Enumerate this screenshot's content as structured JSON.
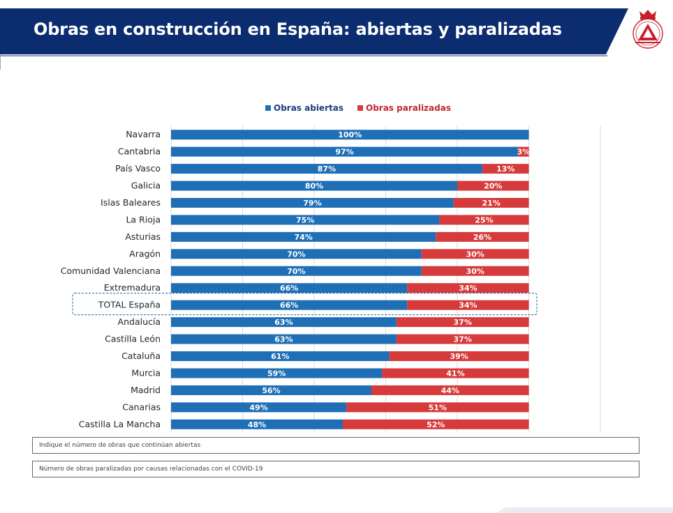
{
  "header": {
    "title": "Obras en construcción en España: abiertas y paralizadas"
  },
  "colors": {
    "banner": "#0b2c6e",
    "abiertas": "#1f6fb6",
    "paralizadas": "#d63a3a",
    "logo": "#c8202a"
  },
  "icons": {
    "logo": "crowned-triangle-emblem-icon"
  },
  "chart_data": {
    "type": "bar",
    "orientation": "horizontal",
    "stacked": true,
    "categories": [
      "Navarra",
      "Cantabria",
      "País Vasco",
      "Galicia",
      "Islas Baleares",
      "La Rioja",
      "Asturias",
      "Aragón",
      "Comunidad Valenciana",
      "Extremadura",
      "TOTAL España",
      "Andalucía",
      "Castilla León",
      "Cataluña",
      "Murcia",
      "Madrid",
      "Canarias",
      "Castilla La Mancha"
    ],
    "series": [
      {
        "name": "Obras abiertas",
        "values": [
          100,
          97,
          87,
          80,
          79,
          75,
          74,
          70,
          70,
          66,
          66,
          63,
          63,
          61,
          59,
          56,
          49,
          48
        ],
        "labels": [
          "100%",
          "97%",
          "87%",
          "80%",
          "79%",
          "75%",
          "74%",
          "70%",
          "70%",
          "66%",
          "66%",
          "63%",
          "63%",
          "61%",
          "59%",
          "56%",
          "49%",
          "48%"
        ]
      },
      {
        "name": "Obras paralizadas",
        "values": [
          0,
          3,
          13,
          20,
          21,
          25,
          26,
          30,
          30,
          34,
          34,
          37,
          37,
          39,
          41,
          44,
          51,
          52
        ],
        "labels": [
          "",
          "3%",
          "13%",
          "20%",
          "21%",
          "25%",
          "26%",
          "30%",
          "30%",
          "34%",
          "34%",
          "37%",
          "37%",
          "39%",
          "41%",
          "44%",
          "51%",
          "52%"
        ]
      }
    ],
    "highlight_category": "TOTAL España",
    "xlim": [
      0,
      120
    ],
    "grid": true,
    "legend": "top-center",
    "title": "",
    "xlabel": "",
    "ylabel": ""
  },
  "notes": [
    "Indique el número de obras que continúan abiertas",
    "Número de obras paralizadas por causas relacionadas con el COVID-19"
  ]
}
